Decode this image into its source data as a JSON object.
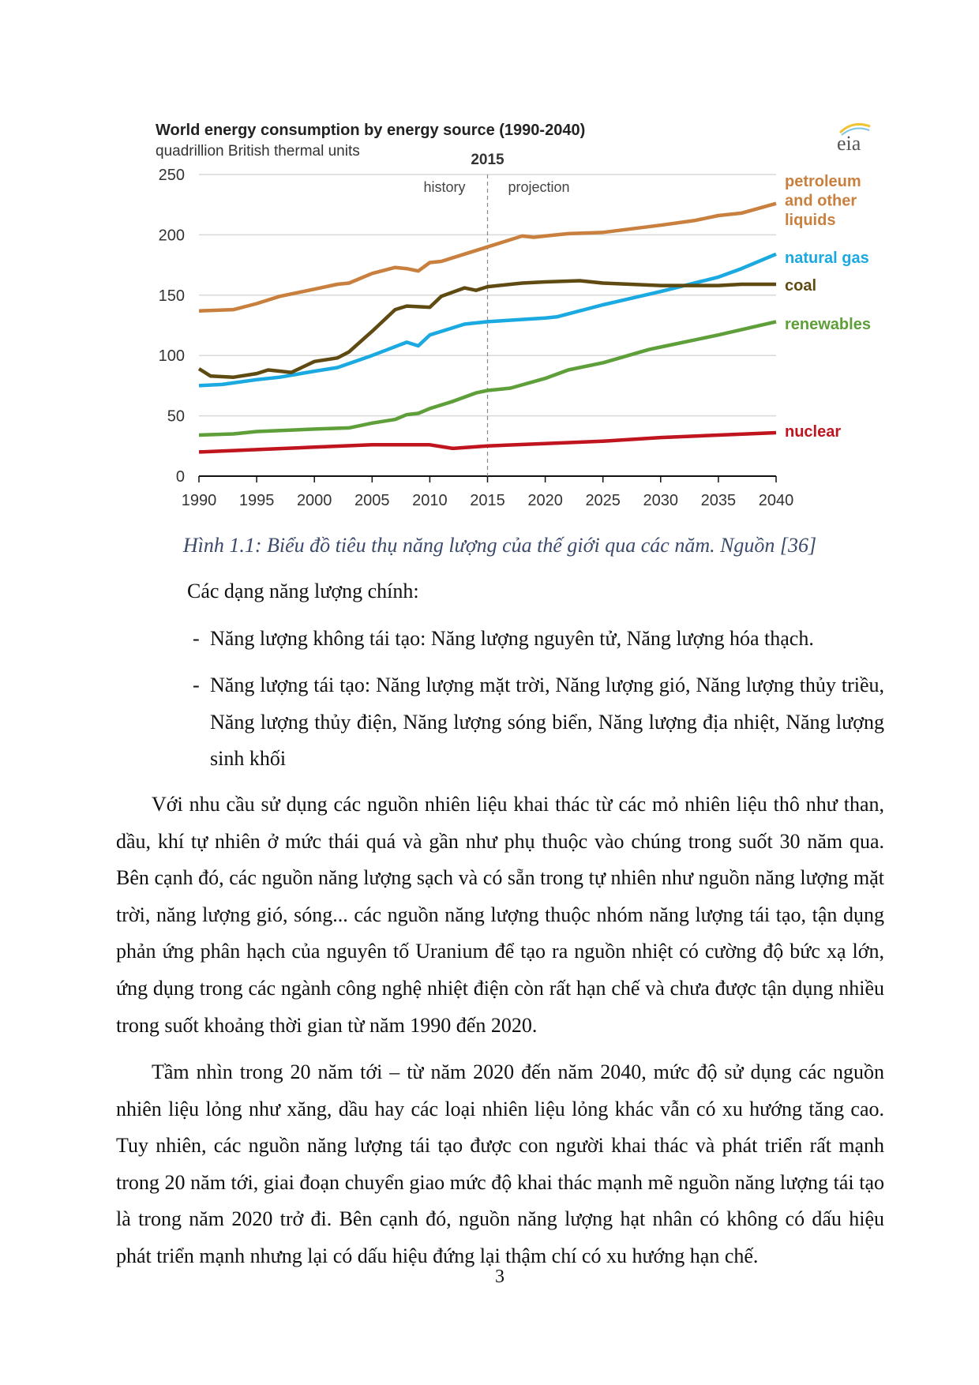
{
  "chart_data": {
    "type": "line",
    "title": "World energy consumption by energy source (1990-2040)",
    "subtitle": "quadrillion British thermal units",
    "logo": "eia",
    "divider": {
      "x": 2015,
      "label": "2015",
      "left_label": "history",
      "right_label": "projection"
    },
    "xlim": [
      1990,
      2040
    ],
    "ylim": [
      0,
      250
    ],
    "x_ticks": [
      1990,
      1995,
      2000,
      2005,
      2010,
      2015,
      2020,
      2025,
      2030,
      2035,
      2040
    ],
    "y_ticks": [
      0,
      50,
      100,
      150,
      200,
      250
    ],
    "grid": "horizontal",
    "legend": "right, inline labels at line ends",
    "series": [
      {
        "name": "petroleum and other liquids",
        "label_lines": [
          "petroleum",
          "and other",
          "liquids"
        ],
        "color": "#c9803f",
        "points": [
          [
            1990,
            137
          ],
          [
            1993,
            138
          ],
          [
            1995,
            143
          ],
          [
            1997,
            149
          ],
          [
            2000,
            155
          ],
          [
            2002,
            159
          ],
          [
            2003,
            160
          ],
          [
            2005,
            168
          ],
          [
            2007,
            173
          ],
          [
            2008,
            172
          ],
          [
            2009,
            170
          ],
          [
            2010,
            177
          ],
          [
            2011,
            178
          ],
          [
            2013,
            184
          ],
          [
            2015,
            190
          ],
          [
            2017,
            196
          ],
          [
            2018,
            199
          ],
          [
            2019,
            198
          ],
          [
            2020,
            199
          ],
          [
            2022,
            201
          ],
          [
            2025,
            202
          ],
          [
            2030,
            208
          ],
          [
            2033,
            212
          ],
          [
            2035,
            216
          ],
          [
            2037,
            218
          ],
          [
            2040,
            226
          ]
        ]
      },
      {
        "name": "natural gas",
        "label_lines": [
          "natural gas"
        ],
        "color": "#1aa9e0",
        "points": [
          [
            1990,
            75
          ],
          [
            1992,
            76
          ],
          [
            1995,
            80
          ],
          [
            1997,
            82
          ],
          [
            2000,
            87
          ],
          [
            2002,
            90
          ],
          [
            2005,
            100
          ],
          [
            2008,
            111
          ],
          [
            2009,
            108
          ],
          [
            2010,
            117
          ],
          [
            2012,
            123
          ],
          [
            2013,
            126
          ],
          [
            2015,
            128
          ],
          [
            2020,
            131
          ],
          [
            2021,
            132
          ],
          [
            2025,
            142
          ],
          [
            2030,
            153
          ],
          [
            2035,
            165
          ],
          [
            2037,
            172
          ],
          [
            2040,
            184
          ]
        ]
      },
      {
        "name": "coal",
        "label_lines": [
          "coal"
        ],
        "color": "#5f4b12",
        "points": [
          [
            1990,
            89
          ],
          [
            1991,
            83
          ],
          [
            1993,
            82
          ],
          [
            1995,
            85
          ],
          [
            1996,
            88
          ],
          [
            1998,
            86
          ],
          [
            2000,
            95
          ],
          [
            2002,
            98
          ],
          [
            2003,
            103
          ],
          [
            2005,
            120
          ],
          [
            2007,
            138
          ],
          [
            2008,
            141
          ],
          [
            2010,
            140
          ],
          [
            2011,
            149
          ],
          [
            2013,
            156
          ],
          [
            2014,
            154
          ],
          [
            2015,
            157
          ],
          [
            2018,
            160
          ],
          [
            2020,
            161
          ],
          [
            2023,
            162
          ],
          [
            2025,
            160
          ],
          [
            2030,
            158
          ],
          [
            2035,
            158
          ],
          [
            2037,
            159
          ],
          [
            2040,
            159
          ]
        ]
      },
      {
        "name": "renewables",
        "label_lines": [
          "renewables"
        ],
        "color": "#5e9f3a",
        "points": [
          [
            1990,
            34
          ],
          [
            1993,
            35
          ],
          [
            1995,
            37
          ],
          [
            2000,
            39
          ],
          [
            2003,
            40
          ],
          [
            2005,
            44
          ],
          [
            2007,
            47
          ],
          [
            2008,
            51
          ],
          [
            2009,
            52
          ],
          [
            2010,
            56
          ],
          [
            2012,
            62
          ],
          [
            2014,
            69
          ],
          [
            2015,
            71
          ],
          [
            2017,
            73
          ],
          [
            2020,
            81
          ],
          [
            2022,
            88
          ],
          [
            2025,
            94
          ],
          [
            2029,
            105
          ],
          [
            2030,
            107
          ],
          [
            2035,
            117
          ],
          [
            2040,
            128
          ]
        ]
      },
      {
        "name": "nuclear",
        "label_lines": [
          "nuclear"
        ],
        "color": "#c0141e",
        "points": [
          [
            1990,
            20
          ],
          [
            1995,
            22
          ],
          [
            2000,
            24
          ],
          [
            2005,
            26
          ],
          [
            2008,
            26
          ],
          [
            2010,
            26
          ],
          [
            2012,
            23
          ],
          [
            2015,
            25
          ],
          [
            2020,
            27
          ],
          [
            2025,
            29
          ],
          [
            2030,
            32
          ],
          [
            2035,
            34
          ],
          [
            2040,
            36
          ]
        ]
      }
    ]
  },
  "document": {
    "caption": "Hình 1.1: Biểu đồ tiêu thụ năng lượng của thế giới qua các năm. Nguồn [36]",
    "intro": "Các dạng năng lượng chính:",
    "bullets": [
      "Năng lượng không tái tạo: Năng lượng nguyên tử, Năng lượng hóa thạch.",
      "Năng lượng tái tạo: Năng lượng mặt trời, Năng lượng gió, Năng lượng thủy triều, Năng lượng thủy điện, Năng lượng sóng biển, Năng lượng địa nhiệt, Năng lượng sinh khối"
    ],
    "bullet_marker": "-",
    "paragraphs": [
      "Với nhu cầu sử dụng các nguồn nhiên liệu khai thác từ các mỏ nhiên liệu thô như than, dầu, khí tự nhiên ở mức thái quá và gần như phụ thuộc vào chúng trong suốt 30 năm qua. Bên cạnh đó, các nguồn năng lượng sạch và có sẵn trong tự nhiên như nguồn năng lượng mặt trời, năng lượng gió, sóng... các nguồn năng lượng thuộc nhóm năng lượng tái tạo, tận dụng phản ứng phân hạch của nguyên tố Uranium để tạo ra nguồn nhiệt có cường độ bức xạ lớn, ứng dụng trong các ngành công nghệ nhiệt điện còn rất hạn chế và chưa được tận dụng nhiều trong suốt khoảng thời gian từ năm 1990 đến 2020.",
      "Tầm nhìn trong 20 năm tới – từ năm 2020 đến năm 2040, mức độ sử dụng các nguồn nhiên liệu lỏng như xăng, dầu hay các loại nhiên liệu lỏng khác vẫn có xu hướng tăng cao. Tuy nhiên, các nguồn năng lượng tái tạo được con người khai thác và phát triển rất mạnh trong 20 năm tới, giai đoạn chuyển giao mức độ khai thác mạnh mẽ nguồn năng lượng tái tạo là trong năm 2020 trở đi. Bên cạnh đó, nguồn năng lượng hạt nhân có không có dấu hiệu phát triển mạnh nhưng lại có dấu hiệu đứng lại thậm chí có xu hướng hạn chế."
    ],
    "page_number": "3"
  }
}
